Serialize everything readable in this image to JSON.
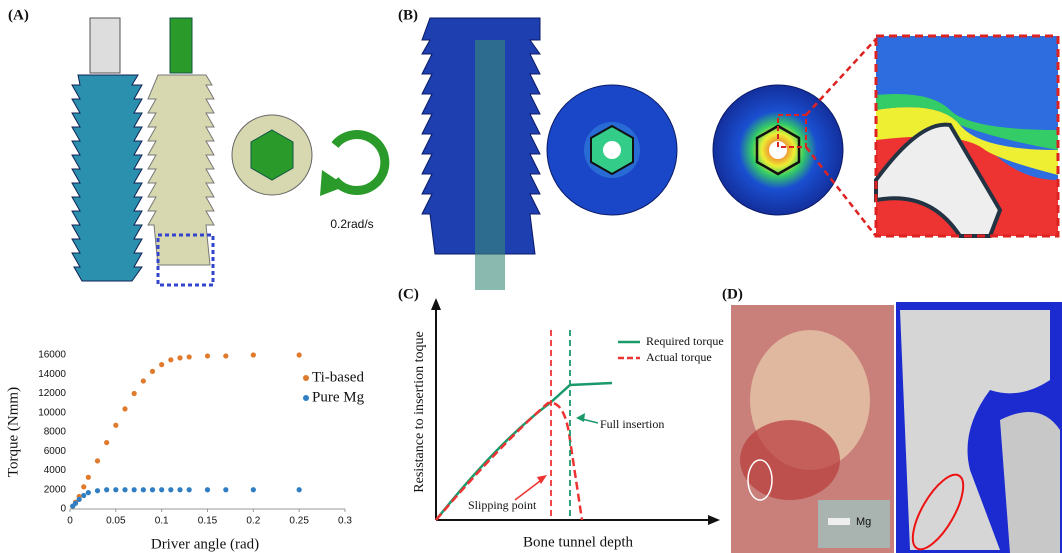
{
  "panels": {
    "a": "(A)",
    "b": "(B)",
    "c": "(C)",
    "d": "(D)",
    "rate": "0.2rad/s",
    "mg": "Mg"
  },
  "schematic": {
    "ylabel": "Resistance to insertion toque",
    "xlabel": "Bone tunnel depth",
    "legend": [
      "Required torque",
      "Actual torque"
    ],
    "full": "Full insertion",
    "slip": "Slipping point"
  },
  "chart_data": {
    "type": "scatter",
    "xlabel": "Driver angle (rad)",
    "ylabel": "Torque (Nmm)",
    "x": [
      0.003,
      0.006,
      0.01,
      0.015,
      0.02,
      0.03,
      0.04,
      0.05,
      0.06,
      0.07,
      0.08,
      0.09,
      0.1,
      0.11,
      0.12,
      0.13,
      0.15,
      0.17,
      0.2,
      0.25
    ],
    "series": [
      {
        "name": "Ti-based",
        "color": "#e07a2c",
        "values": [
          300,
          700,
          1300,
          2300,
          3300,
          5000,
          6900,
          8700,
          10400,
          12000,
          13300,
          14300,
          15000,
          15500,
          15700,
          15800,
          15900,
          15900,
          16000,
          16000
        ]
      },
      {
        "name": "Pure Mg",
        "color": "#2f7ec4",
        "values": [
          300,
          600,
          1000,
          1400,
          1700,
          1900,
          2000,
          2000,
          2000,
          2000,
          2000,
          2000,
          2000,
          2000,
          2000,
          2000,
          2000,
          2000,
          2000,
          2000
        ]
      }
    ],
    "xlim": [
      0,
      0.3
    ],
    "xticks": [
      0,
      0.05,
      0.1,
      0.15,
      0.2,
      0.25,
      0.3
    ],
    "ylim": [
      0,
      16000
    ],
    "yticks": [
      0,
      2000,
      4000,
      6000,
      8000,
      10000,
      12000,
      14000,
      16000
    ]
  }
}
